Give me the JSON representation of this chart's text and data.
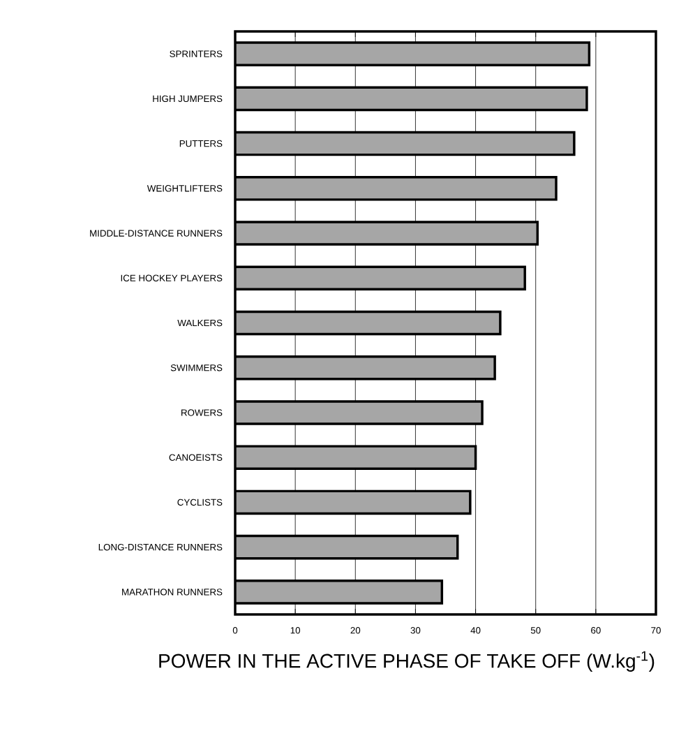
{
  "chart_data": {
    "type": "bar",
    "orientation": "horizontal",
    "categories": [
      "SPRINTERS",
      "HIGH JUMPERS",
      "PUTTERS",
      "WEIGHTLIFTERS",
      "MIDDLE-DISTANCE RUNNERS",
      "ICE HOCKEY PLAYERS",
      "WALKERS",
      "SWIMMERS",
      "ROWERS",
      "CANOEISTS",
      "CYCLISTS",
      "LONG-DISTANCE RUNNERS",
      "MARATHON RUNNERS"
    ],
    "values": [
      58.9,
      58.5,
      56.4,
      53.4,
      50.3,
      48.2,
      44.1,
      43.2,
      41.1,
      40.0,
      39.1,
      37.0,
      34.4
    ],
    "color": "#a6a6a6",
    "xlabel": "POWER IN THE ACTIVE PHASE OF TAKE OFF (W.kg$^{-1}$)",
    "xlim": [
      0,
      70
    ],
    "xticks": [
      0,
      10,
      20,
      30,
      40,
      50,
      60,
      70
    ],
    "grid": "x"
  }
}
